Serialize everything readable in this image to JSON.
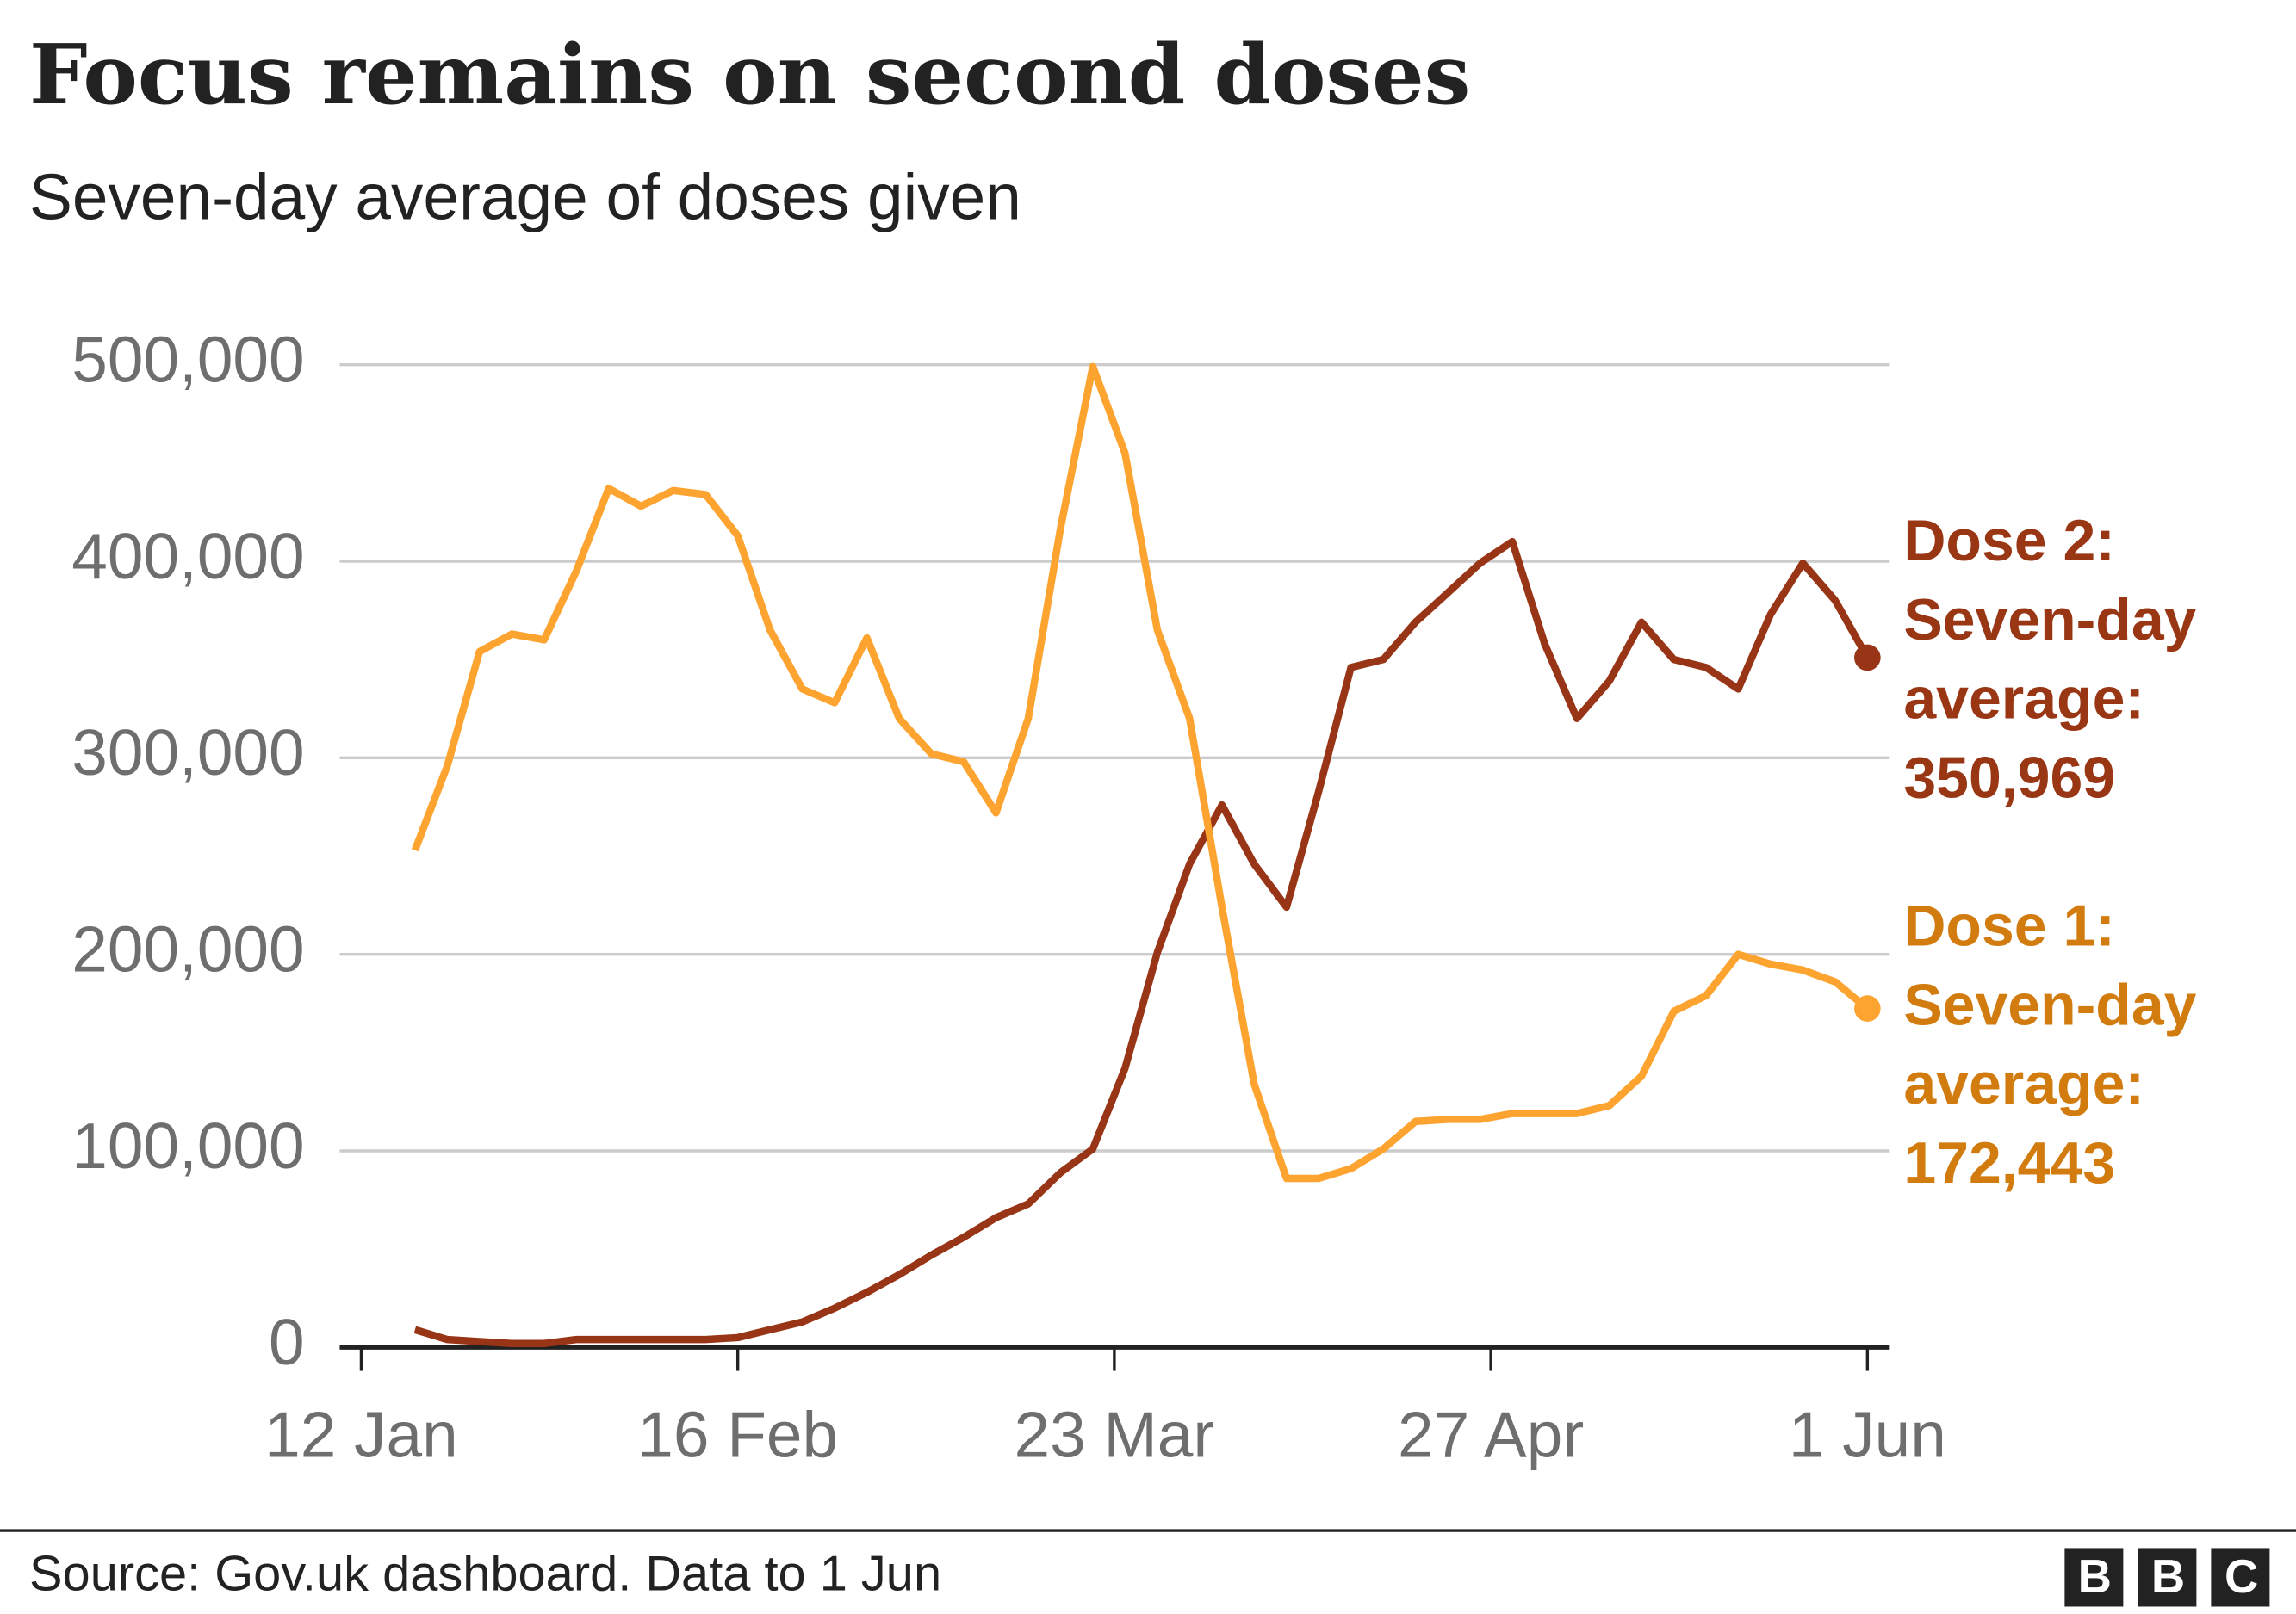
{
  "chart_data": {
    "type": "line",
    "title": "Focus remains on second doses",
    "subtitle": "Seven-day average of doses given",
    "source": "Source: Gov.uk dashboard. Data to 1 Jun",
    "logo": "BBC",
    "x": [
      "17 Jan",
      "20 Jan",
      "23 Jan",
      "26 Jan",
      "29 Jan",
      "1 Feb",
      "4 Feb",
      "7 Feb",
      "10 Feb",
      "13 Feb",
      "16 Feb",
      "19 Feb",
      "22 Feb",
      "25 Feb",
      "28 Feb",
      "3 Mar",
      "6 Mar",
      "9 Mar",
      "12 Mar",
      "15 Mar",
      "18 Mar",
      "21 Mar",
      "24 Mar",
      "27 Mar",
      "30 Mar",
      "2 Apr",
      "5 Apr",
      "8 Apr",
      "11 Apr",
      "14 Apr",
      "17 Apr",
      "20 Apr",
      "23 Apr",
      "26 Apr",
      "29 Apr",
      "2 May",
      "5 May",
      "8 May",
      "11 May",
      "14 May",
      "17 May",
      "20 May",
      "23 May",
      "26 May",
      "29 May",
      "1 Jun"
    ],
    "xlim": [
      "10 Jan",
      "3 Jun"
    ],
    "xticks": [
      "12 Jan",
      "16 Feb",
      "23 Mar",
      "27 Apr",
      "1 Jun"
    ],
    "ylim": [
      0,
      500000
    ],
    "yticks": [
      0,
      {
        "value": 100000,
        "label": "100,000"
      },
      {
        "value": 200000,
        "label": "200,000"
      },
      {
        "value": 300000,
        "label": "300,000"
      },
      {
        "value": 400000,
        "label": "400,000"
      },
      {
        "value": 500000,
        "label": "500,000"
      }
    ],
    "grid": true,
    "series": [
      {
        "name": "Dose 2:",
        "label_lines": [
          "Seven-day",
          "average:"
        ],
        "end_value_label": "350,969",
        "color": "#983516",
        "label_color": "#993613",
        "values": [
          9000,
          4000,
          3000,
          2000,
          2000,
          4000,
          4000,
          4000,
          4000,
          4000,
          5000,
          9000,
          13000,
          20000,
          28000,
          37000,
          47000,
          56000,
          66000,
          73000,
          89000,
          101000,
          142000,
          201000,
          246000,
          276000,
          246000,
          224000,
          283000,
          346000,
          350000,
          369000,
          384000,
          399000,
          410000,
          358000,
          320000,
          339000,
          369000,
          350000,
          346000,
          335000,
          373000,
          399000,
          380000,
          350969
        ]
      },
      {
        "name": "Dose 1:",
        "label_lines": [
          "Seven-day",
          "average:"
        ],
        "end_value_label": "172,443",
        "color": "#fda32f",
        "label_color": "#d27c10",
        "values": [
          253000,
          296000,
          354000,
          363000,
          360000,
          395000,
          437000,
          428000,
          436000,
          434000,
          413000,
          365000,
          335000,
          328000,
          361000,
          320000,
          302000,
          298000,
          272000,
          320000,
          417000,
          499000,
          455000,
          365000,
          320000,
          224000,
          134000,
          86000,
          86000,
          91000,
          101000,
          115000,
          116000,
          116000,
          119000,
          119000,
          119000,
          123000,
          138000,
          171000,
          179000,
          200000,
          195000,
          192000,
          186000,
          172443
        ]
      }
    ]
  }
}
